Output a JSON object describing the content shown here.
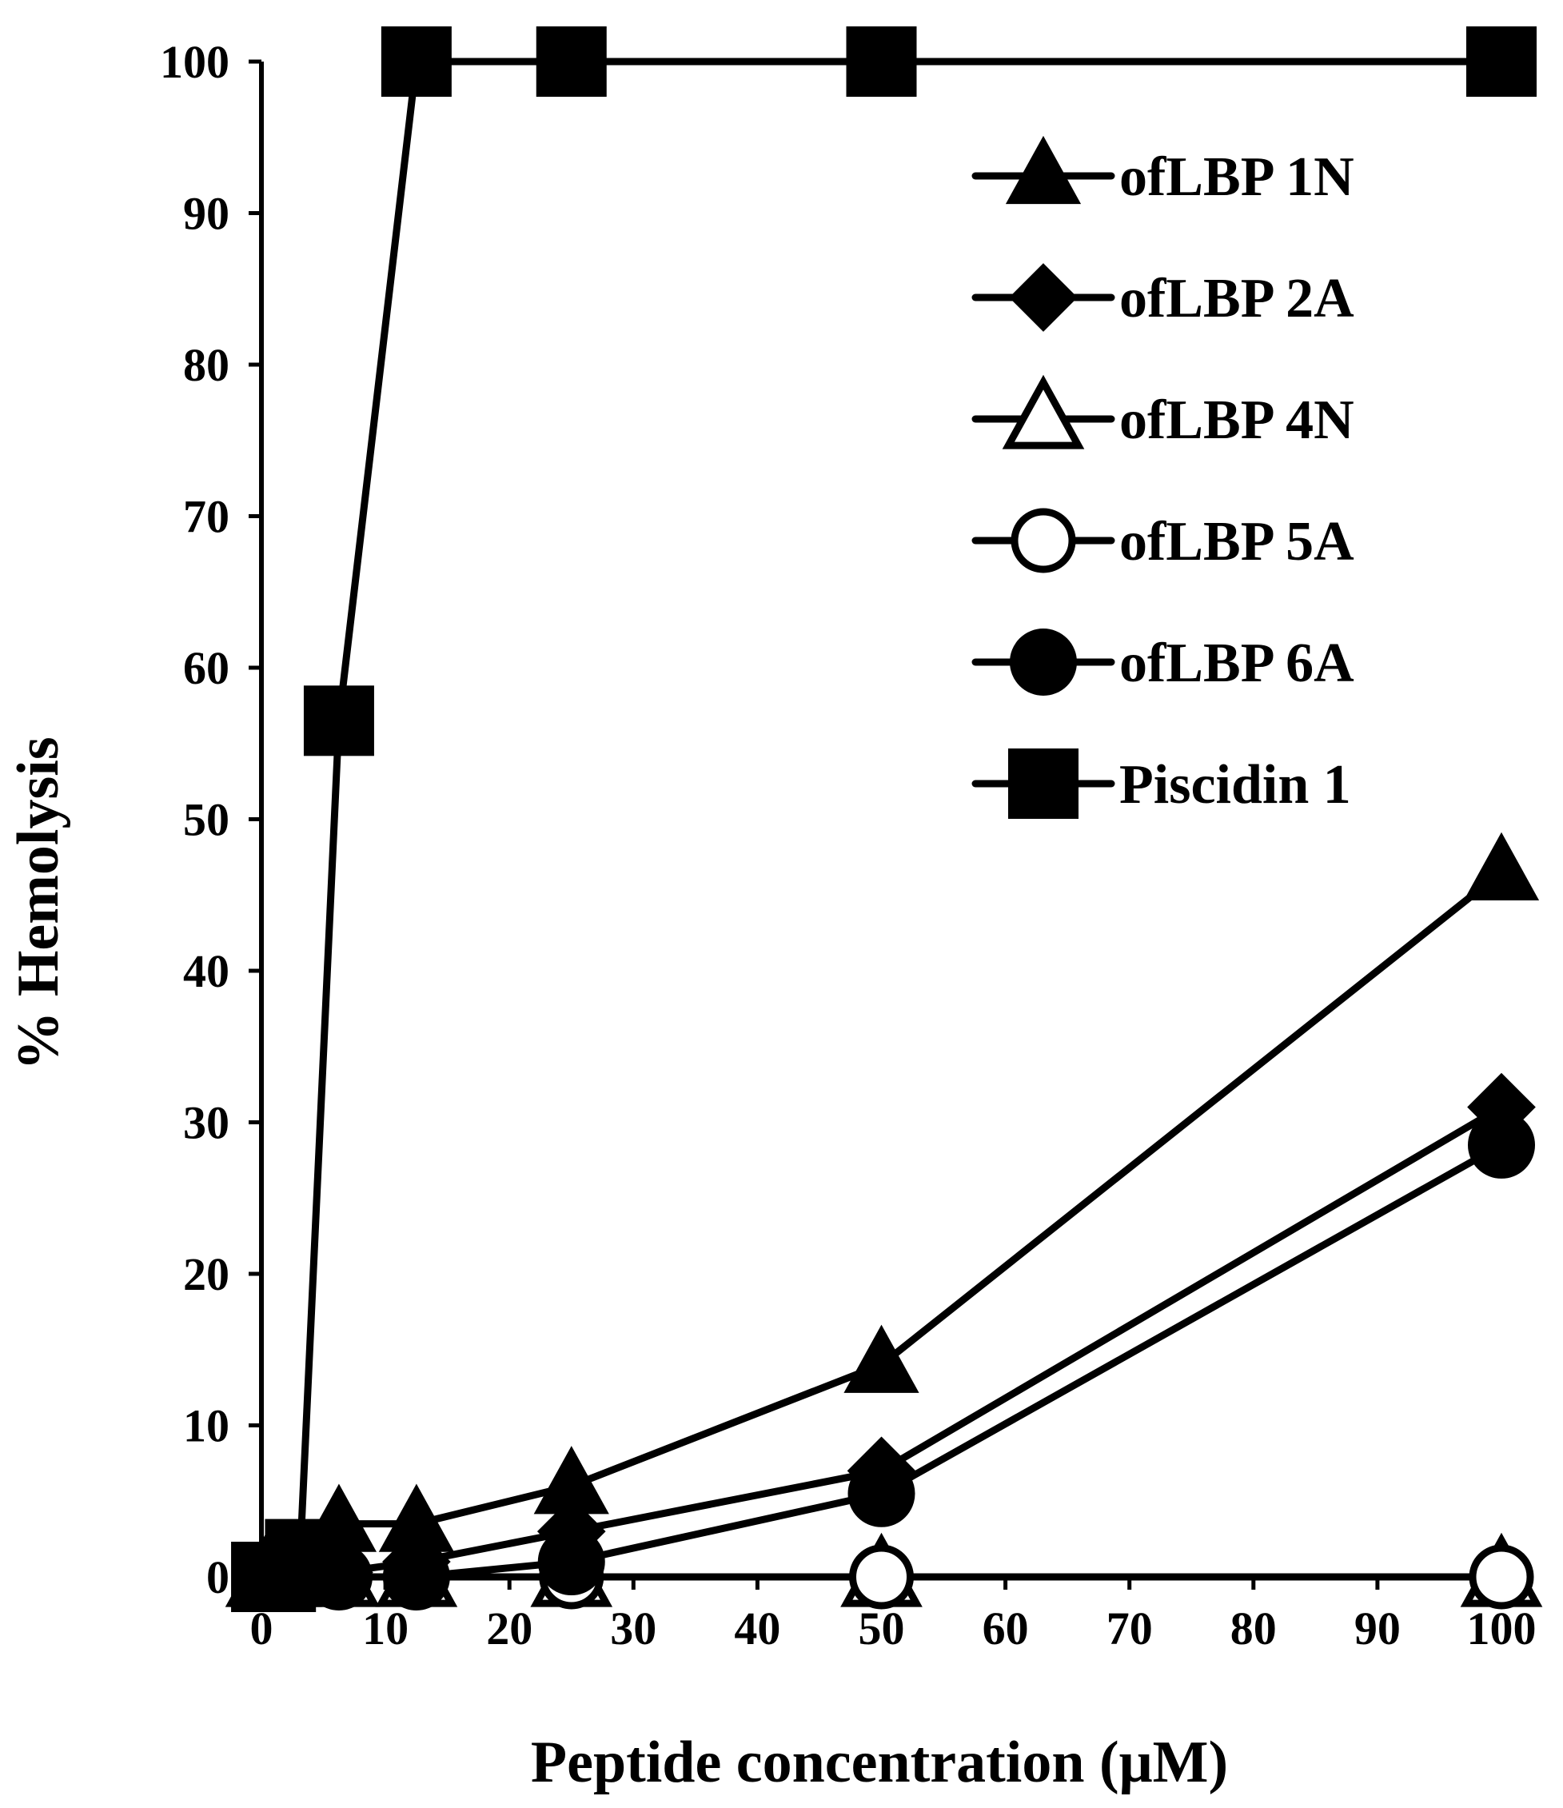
{
  "chart_data": {
    "type": "line",
    "title": "",
    "xlabel": "Peptide concentration (μM)",
    "ylabel": "% Hemolysis",
    "xlim": [
      0,
      100
    ],
    "ylim": [
      0,
      100
    ],
    "xticks": [
      0,
      10,
      20,
      30,
      40,
      50,
      60,
      70,
      80,
      90,
      100
    ],
    "yticks": [
      0,
      10,
      20,
      30,
      40,
      50,
      60,
      70,
      80,
      90,
      100
    ],
    "x": [
      0.39,
      0.78,
      1.56,
      3.125,
      6.25,
      12.5,
      25,
      50,
      100
    ],
    "grid": false,
    "legend_position": "top-right",
    "colors": {
      "line": "#000000",
      "background": "#ffffff",
      "open_fill": "#ffffff"
    },
    "series": [
      {
        "name": "ofLBP 1N",
        "marker": "triangle-filled",
        "values": [
          0,
          0,
          0,
          0.5,
          3.5,
          3.5,
          6,
          14,
          46.5
        ]
      },
      {
        "name": "ofLBP 2A",
        "marker": "diamond-filled",
        "values": [
          0,
          0,
          0,
          0,
          0.3,
          1,
          3,
          7,
          31
        ]
      },
      {
        "name": "ofLBP 4N",
        "marker": "triangle-open",
        "values": [
          0,
          0,
          0,
          0,
          0,
          0,
          0,
          0,
          0
        ]
      },
      {
        "name": "ofLBP 5A",
        "marker": "circle-open",
        "values": [
          0,
          0,
          0,
          0,
          0,
          0,
          0,
          0,
          0
        ]
      },
      {
        "name": "ofLBP 6A",
        "marker": "circle-filled",
        "values": [
          0,
          0,
          0,
          0,
          0,
          0,
          1,
          5.5,
          28.5
        ]
      },
      {
        "name": "Piscidin 1",
        "marker": "square-filled",
        "values": [
          0,
          0,
          0,
          1.5,
          56.5,
          100,
          100,
          100,
          100
        ]
      }
    ]
  }
}
